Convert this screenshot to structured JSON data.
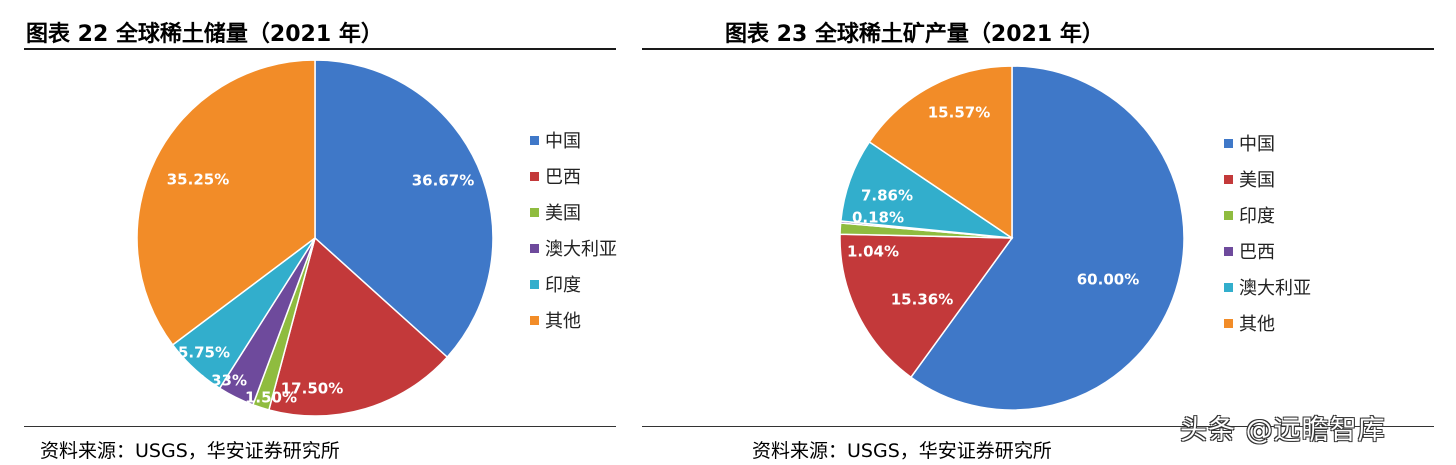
{
  "colors": {
    "blue": "#3f78c8",
    "red": "#c3393a",
    "green": "#8fbc3f",
    "purple": "#6e4a9c",
    "cyan": "#32aecc",
    "orange": "#f28c28"
  },
  "chart_data": [
    {
      "type": "pie",
      "title": "图表 22 全球稀土储量（2021 年）",
      "source": "资料来源：USGS，华安证券研究所",
      "legend_position": "right",
      "slices": [
        {
          "name": "中国",
          "value": 36.67,
          "label": "36.67%",
          "color": "#3f78c8"
        },
        {
          "name": "巴西",
          "value": 17.5,
          "label": "17.50%",
          "color": "#c3393a"
        },
        {
          "name": "美国",
          "value": 1.5,
          "label": "1.50%",
          "color": "#8fbc3f"
        },
        {
          "name": "澳大利亚",
          "value": 3.33,
          "label": "3.33%",
          "color": "#6e4a9c"
        },
        {
          "name": "印度",
          "value": 5.75,
          "label": "5.75%",
          "color": "#32aecc"
        },
        {
          "name": "其他",
          "value": 35.25,
          "label": "35.25%",
          "color": "#f28c28"
        }
      ]
    },
    {
      "type": "pie",
      "title": "图表 23 全球稀土矿产量（2021 年）",
      "source": "资料来源：USGS，华安证券研究所",
      "legend_position": "right",
      "slices": [
        {
          "name": "中国",
          "value": 60.0,
          "label": "60.00%",
          "color": "#3f78c8"
        },
        {
          "name": "美国",
          "value": 15.36,
          "label": "15.36%",
          "color": "#c3393a"
        },
        {
          "name": "印度",
          "value": 1.04,
          "label": "1.04%",
          "color": "#8fbc3f"
        },
        {
          "name": "巴西",
          "value": 0.18,
          "label": "0.18%",
          "color": "#6e4a9c"
        },
        {
          "name": "澳大利亚",
          "value": 7.86,
          "label": "7.86%",
          "color": "#32aecc"
        },
        {
          "name": "其他",
          "value": 15.57,
          "label": "15.57%",
          "color": "#f28c28"
        }
      ]
    }
  ],
  "watermark": "头条 @远瞻智库"
}
